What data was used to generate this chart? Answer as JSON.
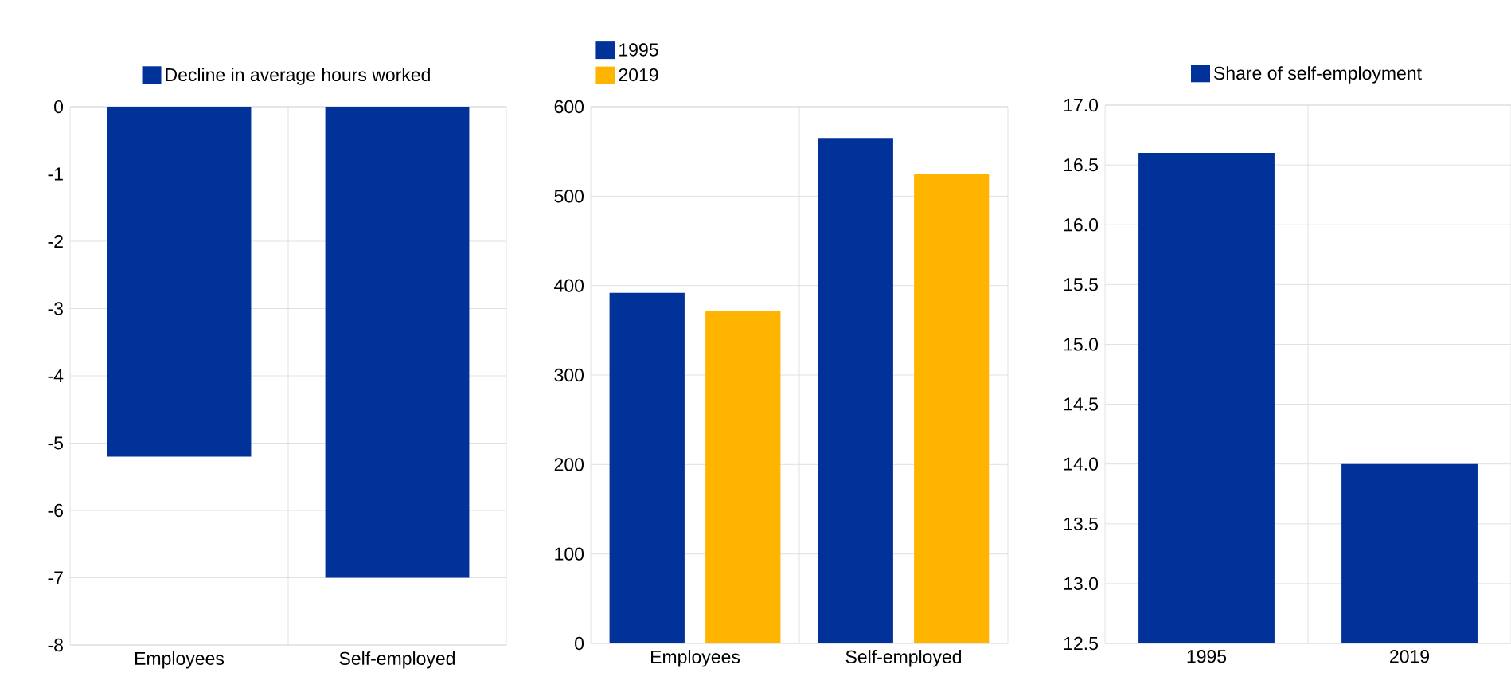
{
  "chart_data": [
    {
      "type": "bar",
      "categories": [
        "Employees",
        "Self-employed"
      ],
      "series": [
        {
          "name": "Decline in average hours worked",
          "color": "#003299",
          "values": [
            -5.2,
            -7.0
          ]
        }
      ],
      "ylim": [
        -8,
        0
      ],
      "yticks": [
        -8,
        -7,
        -6,
        -5,
        -4,
        -3,
        -2,
        -1,
        0
      ],
      "grid": true,
      "legend": "top"
    },
    {
      "type": "bar",
      "categories": [
        "Employees",
        "Self-employed"
      ],
      "series": [
        {
          "name": "1995",
          "color": "#003299",
          "values": [
            392,
            565
          ]
        },
        {
          "name": "2019",
          "color": "#ffb400",
          "values": [
            372,
            525
          ]
        }
      ],
      "ylim": [
        0,
        600
      ],
      "yticks": [
        0,
        100,
        200,
        300,
        400,
        500,
        600
      ],
      "grid": true,
      "legend": "top left"
    },
    {
      "type": "bar",
      "categories": [
        "1995",
        "2019"
      ],
      "series": [
        {
          "name": "Share of self-employment",
          "color": "#003299",
          "values": [
            16.6,
            14.0
          ]
        }
      ],
      "ylim": [
        12.5,
        17
      ],
      "yticks": [
        {
          "value": 12.5,
          "label": "12.5"
        },
        {
          "value": 13,
          "label": "13.0"
        },
        {
          "value": 13.5,
          "label": "13.5"
        },
        {
          "value": 14,
          "label": "14.0"
        },
        {
          "value": 14.5,
          "label": "14.5"
        },
        {
          "value": 15,
          "label": "15.0"
        },
        {
          "value": 15.5,
          "label": "15.5"
        },
        {
          "value": 16,
          "label": "16.0"
        },
        {
          "value": 16.5,
          "label": "16.5"
        },
        {
          "value": 17,
          "label": "17.0"
        }
      ],
      "grid": true,
      "legend": "top"
    }
  ]
}
